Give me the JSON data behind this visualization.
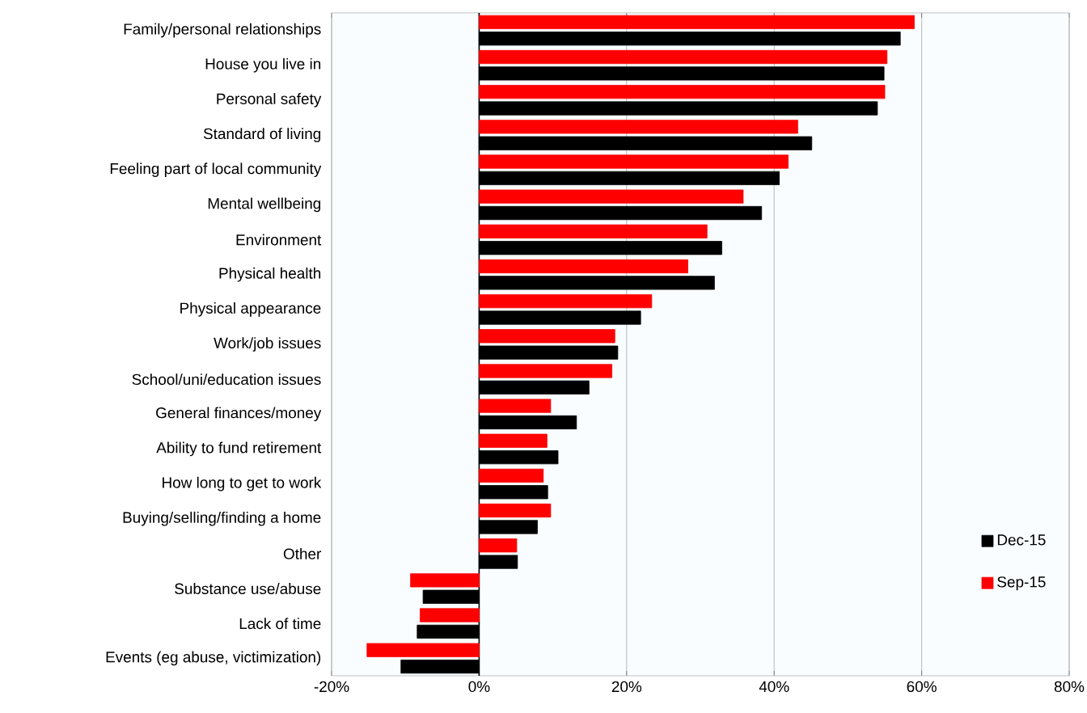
{
  "chart_data": {
    "type": "bar",
    "orientation": "horizontal",
    "categories": [
      "Family/personal relationships",
      "House you live in",
      "Personal safety",
      "Standard of living",
      "Feeling part of local community",
      "Mental wellbeing",
      "Environment",
      "Physical health",
      "Physical appearance",
      "Work/job issues",
      "School/uni/education issues",
      "General finances/money",
      "Ability to fund retirement",
      "How long to get to work",
      "Buying/selling/finding a home",
      "Other",
      "Substance use/abuse",
      "Lack of time",
      "Events (eg abuse, victimization)"
    ],
    "series": [
      {
        "name": "Dec-15",
        "color": "#000000",
        "values": [
          57.1,
          54.9,
          54.0,
          45.1,
          40.7,
          38.3,
          32.9,
          31.9,
          21.9,
          18.8,
          14.9,
          13.2,
          10.7,
          9.3,
          7.9,
          5.2,
          -7.6,
          -8.4,
          -10.6
        ]
      },
      {
        "name": "Sep-15",
        "color": "#ff0000",
        "values": [
          59.0,
          55.3,
          55.0,
          43.2,
          41.9,
          35.8,
          30.9,
          28.3,
          23.4,
          18.4,
          18.0,
          9.7,
          9.2,
          8.7,
          9.7,
          5.1,
          -9.3,
          -8.0,
          -15.2
        ]
      }
    ],
    "xlim": [
      -20,
      80
    ],
    "xticks": [
      {
        "value": -20,
        "label": "-20%"
      },
      {
        "value": 0,
        "label": "0%"
      },
      {
        "value": 20,
        "label": "20%"
      },
      {
        "value": 40,
        "label": "40%"
      },
      {
        "value": 60,
        "label": "60%"
      },
      {
        "value": 80,
        "label": "80%"
      }
    ],
    "grid": "x",
    "legend": "bottom right"
  }
}
